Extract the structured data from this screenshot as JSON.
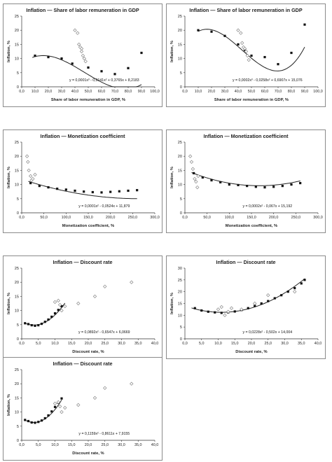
{
  "colors": {
    "points": "#111111",
    "open_points": "#888888",
    "curve": "#222222",
    "frame": "#8a8a8a"
  },
  "chart_data": [
    {
      "type": "scatter",
      "title": "Inflation — Share of labor remuneration in GDP",
      "xlabel": "Share of labor remuneration in GDP, %",
      "ylabel": "Inflation, %",
      "xlim": [
        0,
        100
      ],
      "ylim": [
        0,
        25
      ],
      "xticks": [
        "0,0",
        "10,0",
        "20,0",
        "30,0",
        "40,0",
        "50,0",
        "60,0",
        "70,0",
        "80,0",
        "90,0",
        "100,0"
      ],
      "yticks": [
        "0",
        "5",
        "10",
        "15",
        "20",
        "25"
      ],
      "equation": "y = 0,0001x³ - 0,0141x² + 0,3765x + 8,2183",
      "fit_coeffs": [
        0.0001,
        -0.0141,
        0.3765,
        8.2183
      ],
      "fit_range": [
        8,
        90
      ],
      "series": [
        {
          "marker": "filled-square",
          "x": [
            10,
            20,
            30,
            38,
            50,
            60,
            70,
            80,
            90
          ],
          "y": [
            11.0,
            10.5,
            10.0,
            8.2,
            6.8,
            5.5,
            4.5,
            6.6,
            12.0
          ]
        },
        {
          "marker": "open-diamond",
          "x": [
            40,
            42,
            43,
            44,
            45,
            45,
            46,
            47,
            48
          ],
          "y": [
            20.0,
            19.0,
            15.0,
            14.0,
            13.5,
            12.5,
            11.0,
            10.0,
            9.0
          ]
        }
      ]
    },
    {
      "type": "scatter",
      "title": "Inflation — Share of labor remuneration in GDP",
      "xlabel": "Share of labor remuneration in GDP, %",
      "ylabel": "Inflation, %",
      "xlim": [
        0,
        100
      ],
      "ylim": [
        0,
        25
      ],
      "xticks": [
        "0,0",
        "10,0",
        "20,0",
        "30,0",
        "40,0",
        "50,0",
        "60,0",
        "70,0",
        "80,0",
        "90,0",
        "100,0"
      ],
      "yticks": [
        "0",
        "5",
        "10",
        "15",
        "20",
        "25"
      ],
      "equation": "y = 0,0002x³ - 0,0258x² + 0,6907x + 15,076",
      "fit_coeffs": [
        0.0002,
        -0.0258,
        0.6907,
        15.076
      ],
      "fit_range": [
        10,
        90
      ],
      "series": [
        {
          "marker": "filled-square",
          "x": [
            10,
            20,
            30,
            40,
            45,
            50,
            60,
            70,
            80,
            90
          ],
          "y": [
            20.0,
            19.5,
            18.0,
            15.0,
            13.0,
            11.0,
            10.5,
            8.0,
            12.0,
            22.0
          ]
        },
        {
          "marker": "open-diamond",
          "x": [
            40,
            42,
            43,
            44,
            45,
            46,
            47,
            48
          ],
          "y": [
            20.0,
            19.0,
            15.5,
            14.0,
            13.5,
            12.5,
            11.0,
            9.5
          ]
        }
      ]
    },
    {
      "type": "scatter",
      "title": "Inflation — Monetization coefficient",
      "xlabel": "Monetization coefficient, %",
      "ylabel": "Inflation, %",
      "xlim": [
        0,
        300
      ],
      "ylim": [
        0,
        25
      ],
      "xticks": [
        "0,0",
        "50,0",
        "100,0",
        "150,0",
        "200,0",
        "250,0",
        "300,0"
      ],
      "yticks": [
        "0",
        "5",
        "10",
        "15",
        "20",
        "25"
      ],
      "equation": "y = 0,0001x² - 0,0524x + 11,879",
      "fit_coeffs": [
        0,
        0.0001,
        -0.0524,
        11.879
      ],
      "fit_range": [
        15,
        260
      ],
      "series": [
        {
          "marker": "filled-square",
          "x": [
            20,
            40,
            60,
            80,
            100,
            120,
            140,
            160,
            180,
            200,
            220,
            240,
            260
          ],
          "y": [
            10.5,
            9.5,
            9.0,
            8.5,
            8.2,
            7.8,
            7.5,
            7.3,
            7.2,
            7.4,
            7.6,
            7.8,
            8.0
          ]
        },
        {
          "marker": "open-diamond",
          "x": [
            12,
            14,
            16,
            20,
            22,
            25,
            30
          ],
          "y": [
            20.0,
            18.0,
            15.0,
            13.0,
            11.5,
            12.0,
            13.5
          ]
        }
      ]
    },
    {
      "type": "scatter",
      "title": "Inflation — Monetization coefficient",
      "xlabel": "Monetization coefficient, %",
      "ylabel": "Inflation, %",
      "xlim": [
        0,
        300
      ],
      "ylim": [
        0,
        25
      ],
      "xticks": [
        "0,0",
        "50,0",
        "100,0",
        "150,0",
        "200,0",
        "250,0",
        "300,0"
      ],
      "yticks": [
        "0",
        "5",
        "10",
        "15",
        "20",
        "25"
      ],
      "equation": "y = 0,0002x² - 0,067x + 15,192",
      "fit_coeffs": [
        0,
        0.0002,
        -0.067,
        15.192
      ],
      "fit_range": [
        15,
        260
      ],
      "series": [
        {
          "marker": "filled-square",
          "x": [
            20,
            40,
            60,
            80,
            100,
            120,
            140,
            160,
            180,
            200,
            220,
            240,
            260
          ],
          "y": [
            14.0,
            12.5,
            11.5,
            10.8,
            10.0,
            9.8,
            9.5,
            9.2,
            9.0,
            9.2,
            9.5,
            10.0,
            10.5
          ]
        },
        {
          "marker": "open-diamond",
          "x": [
            12,
            15,
            18,
            22,
            25,
            28,
            30
          ],
          "y": [
            20.0,
            18.0,
            15.5,
            12.0,
            11.0,
            9.0,
            13.0
          ]
        }
      ]
    },
    {
      "type": "scatter",
      "title": "Inflation — Discount rate",
      "xlabel": "Discount rate, %",
      "ylabel": "Inflation, %",
      "xlim": [
        0,
        40
      ],
      "ylim": [
        0,
        25
      ],
      "xticks": [
        "0,0",
        "5,0",
        "10,0",
        "15,0",
        "20,0",
        "25,0",
        "30,0",
        "35,0",
        "40,0"
      ],
      "yticks": [
        "0",
        "5",
        "10",
        "15",
        "20",
        "25"
      ],
      "equation": "y = 0,0892x² - 0,6547x + 6,0669",
      "fit_coeffs": [
        0,
        0.0892,
        -0.6547,
        6.0669
      ],
      "fit_range": [
        1,
        13
      ],
      "series": [
        {
          "marker": "filled-square",
          "x": [
            1,
            2,
            3,
            4,
            5,
            6,
            7,
            8,
            9,
            10,
            11,
            12
          ],
          "y": [
            5.5,
            5.2,
            4.8,
            4.6,
            4.8,
            5.3,
            6.0,
            6.8,
            7.8,
            9.0,
            10.2,
            11.5
          ]
        },
        {
          "marker": "open-diamond",
          "x": [
            10,
            11,
            11.5,
            12,
            13,
            17,
            22,
            25,
            33
          ],
          "y": [
            13.0,
            13.5,
            12.0,
            10.0,
            11.5,
            12.5,
            15.0,
            18.5,
            20.0
          ]
        }
      ]
    },
    {
      "type": "scatter",
      "title": "Inflation — Discount rate",
      "xlabel": "Discount rate, %",
      "ylabel": "Inflation, %",
      "xlim": [
        0,
        40
      ],
      "ylim": [
        0,
        30
      ],
      "xticks": [
        "0,0",
        "5,0",
        "10,0",
        "15,0",
        "20,0",
        "25,0",
        "30,0",
        "35,0",
        "40,0"
      ],
      "yticks": [
        "0",
        "5",
        "10",
        "15",
        "20",
        "25",
        "30"
      ],
      "equation": "y = 0,0228x² - 0,502x + 14,004",
      "fit_coeffs": [
        0,
        0.0228,
        -0.502,
        14.004
      ],
      "fit_range": [
        2,
        36
      ],
      "series": [
        {
          "marker": "filled-square",
          "x": [
            3,
            5,
            7,
            9,
            11,
            13,
            15,
            17,
            19,
            21,
            23,
            25,
            27,
            29,
            31,
            33,
            35,
            36
          ],
          "y": [
            13.0,
            12.0,
            11.5,
            11.2,
            11.0,
            11.2,
            11.6,
            12.2,
            13.0,
            14.0,
            15.0,
            16.0,
            17.2,
            18.5,
            20.0,
            21.5,
            23.5,
            25.0
          ]
        },
        {
          "marker": "open-diamond",
          "x": [
            10,
            11,
            12,
            13,
            14,
            17,
            21,
            25,
            33
          ],
          "y": [
            12.5,
            13.5,
            10.0,
            11.5,
            13.0,
            12.5,
            15.0,
            18.5,
            20.0
          ]
        }
      ]
    },
    {
      "type": "scatter",
      "title": "Inflation — Discount rate",
      "xlabel": "Discount rate, %",
      "ylabel": "Inflation, %",
      "xlim": [
        0,
        40
      ],
      "ylim": [
        0,
        25
      ],
      "xticks": [
        "0,0",
        "5,0",
        "10,0",
        "15,0",
        "20,0",
        "25,0",
        "30,0",
        "35,0",
        "40,0"
      ],
      "yticks": [
        "0",
        "5",
        "10",
        "15",
        "20",
        "25"
      ],
      "equation": "y = 0,1159x² - 0,8611x + 7,9155",
      "fit_coeffs": [
        0,
        0.1159,
        -0.8611,
        7.9155
      ],
      "fit_range": [
        1,
        12
      ],
      "series": [
        {
          "marker": "filled-square",
          "x": [
            1,
            2,
            3,
            4,
            5,
            6,
            7,
            8,
            9,
            10,
            11,
            12
          ],
          "y": [
            7.2,
            6.8,
            6.3,
            6.2,
            6.5,
            7.0,
            7.8,
            8.8,
            10.2,
            11.8,
            13.3,
            14.8
          ]
        },
        {
          "marker": "open-diamond",
          "x": [
            10,
            11,
            11.5,
            12,
            13,
            17,
            22,
            25,
            33
          ],
          "y": [
            13.0,
            13.5,
            12.0,
            10.0,
            11.5,
            12.5,
            15.0,
            18.5,
            20.0
          ]
        }
      ]
    }
  ]
}
